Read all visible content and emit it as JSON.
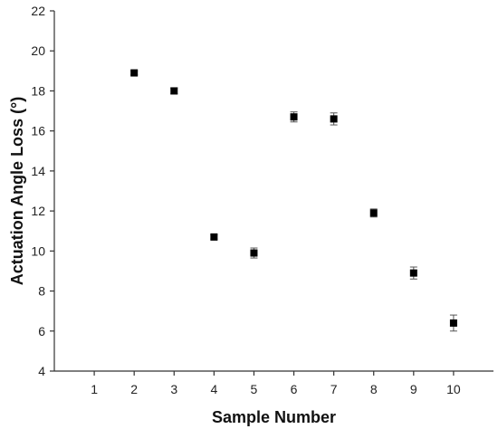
{
  "chart_data": {
    "type": "scatter",
    "xlabel": "Sample Number",
    "ylabel": "Actuation Angle Loss (°)",
    "xlim": [
      0,
      11
    ],
    "ylim": [
      4,
      22
    ],
    "xticks": [
      1,
      2,
      3,
      4,
      5,
      6,
      7,
      8,
      9,
      10
    ],
    "yticks": [
      4,
      6,
      8,
      10,
      12,
      14,
      16,
      18,
      20,
      22
    ],
    "grid": false,
    "series": [
      {
        "marker": "square",
        "color": "#000000",
        "points": [
          {
            "x": 2,
            "y": 18.9,
            "err": 0.1
          },
          {
            "x": 3,
            "y": 18.0,
            "err": 0.15
          },
          {
            "x": 4,
            "y": 10.7,
            "err": 0.1
          },
          {
            "x": 5,
            "y": 9.9,
            "err": 0.25
          },
          {
            "x": 6,
            "y": 16.7,
            "err": 0.25
          },
          {
            "x": 7,
            "y": 16.6,
            "err": 0.3
          },
          {
            "x": 8,
            "y": 11.9,
            "err": 0.2
          },
          {
            "x": 9,
            "y": 8.9,
            "err": 0.3
          },
          {
            "x": 10,
            "y": 6.4,
            "err": 0.4
          }
        ]
      }
    ]
  }
}
